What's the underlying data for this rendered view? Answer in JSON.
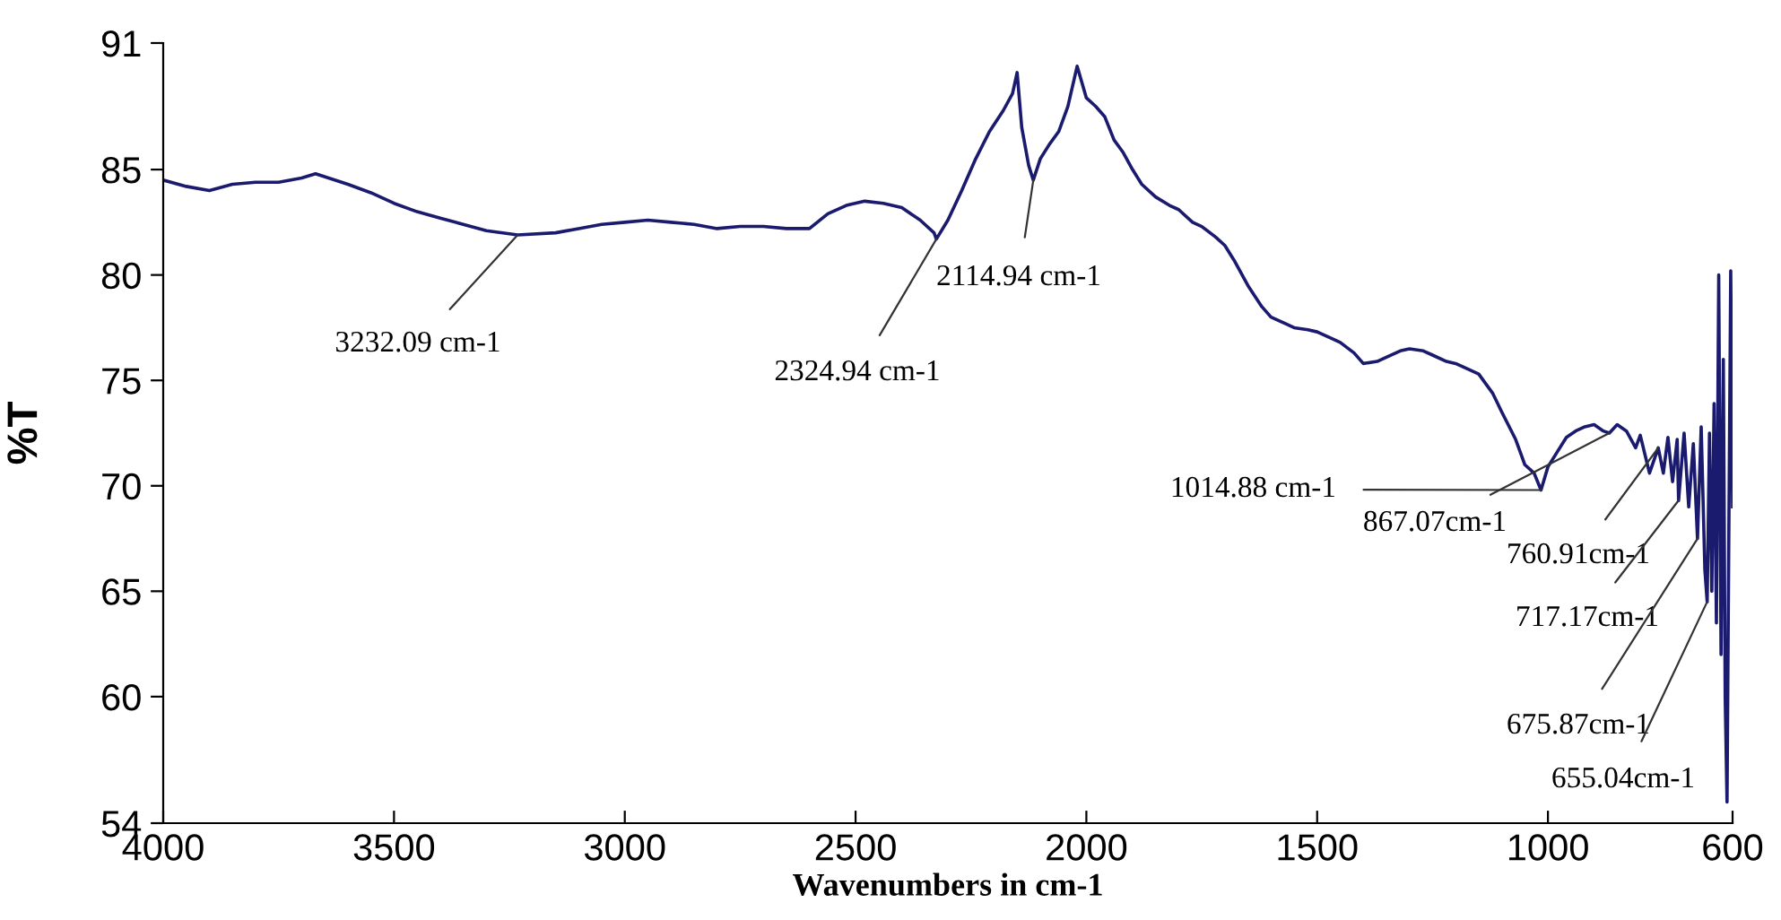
{
  "chart_data": {
    "type": "line",
    "xlabel": "Wavenumbers in cm-1",
    "ylabel": "%T",
    "xlim": [
      4000,
      600
    ],
    "ylim": [
      54,
      91
    ],
    "xticks": [
      4000,
      3500,
      3000,
      2500,
      2000,
      1500,
      1000,
      600
    ],
    "yticks": [
      54,
      60,
      65,
      70,
      75,
      80,
      85,
      91
    ],
    "grid": false,
    "marker": "none",
    "line_style": "solid",
    "series": [
      {
        "color": "#1a1a6e",
        "x": [
          4000,
          3950,
          3900,
          3850,
          3800,
          3750,
          3700,
          3670,
          3600,
          3550,
          3500,
          3450,
          3400,
          3350,
          3300,
          3232,
          3150,
          3100,
          3050,
          3000,
          2950,
          2900,
          2850,
          2800,
          2750,
          2700,
          2650,
          2600,
          2560,
          2520,
          2480,
          2440,
          2400,
          2360,
          2330,
          2325,
          2300,
          2270,
          2240,
          2210,
          2180,
          2160,
          2150,
          2140,
          2125,
          2115,
          2100,
          2080,
          2060,
          2040,
          2020,
          2000,
          1980,
          1960,
          1940,
          1920,
          1900,
          1880,
          1850,
          1820,
          1800,
          1770,
          1750,
          1720,
          1700,
          1680,
          1650,
          1620,
          1600,
          1570,
          1550,
          1520,
          1500,
          1470,
          1450,
          1420,
          1400,
          1370,
          1350,
          1320,
          1300,
          1270,
          1250,
          1220,
          1200,
          1170,
          1150,
          1120,
          1100,
          1070,
          1050,
          1030,
          1015,
          1000,
          980,
          960,
          940,
          920,
          900,
          880,
          867,
          850,
          830,
          810,
          800,
          780,
          761,
          750,
          740,
          730,
          720,
          717,
          705,
          695,
          685,
          676,
          668,
          660,
          655,
          650,
          645,
          640,
          635,
          630,
          625,
          620,
          616,
          612,
          608,
          604,
          600
        ],
        "values": [
          84.5,
          84.2,
          84.0,
          84.3,
          84.4,
          84.4,
          84.6,
          84.8,
          84.3,
          83.9,
          83.4,
          83.0,
          82.7,
          82.4,
          82.1,
          81.9,
          82.0,
          82.2,
          82.4,
          82.5,
          82.6,
          82.5,
          82.4,
          82.2,
          82.3,
          82.3,
          82.2,
          82.2,
          82.9,
          83.3,
          83.5,
          83.4,
          83.2,
          82.6,
          82.0,
          81.7,
          82.6,
          84.0,
          85.5,
          86.8,
          87.8,
          88.6,
          89.6,
          87.0,
          85.2,
          84.5,
          85.5,
          86.2,
          86.8,
          88.0,
          89.9,
          88.4,
          88.0,
          87.5,
          86.4,
          85.8,
          85.0,
          84.3,
          83.7,
          83.3,
          83.1,
          82.5,
          82.3,
          81.8,
          81.4,
          80.7,
          79.5,
          78.5,
          78.0,
          77.7,
          77.5,
          77.4,
          77.3,
          77.0,
          76.8,
          76.3,
          75.8,
          75.9,
          76.1,
          76.4,
          76.5,
          76.4,
          76.2,
          75.9,
          75.8,
          75.5,
          75.3,
          74.4,
          73.5,
          72.2,
          71.0,
          70.6,
          69.8,
          70.9,
          71.6,
          72.3,
          72.6,
          72.8,
          72.9,
          72.6,
          72.5,
          72.9,
          72.6,
          71.8,
          72.4,
          70.6,
          71.8,
          70.6,
          72.3,
          70.2,
          72.2,
          69.3,
          72.5,
          69.0,
          72.0,
          67.5,
          72.8,
          66.0,
          64.5,
          72.5,
          65.0,
          73.9,
          63.5,
          80.0,
          62.0,
          76.0,
          60.0,
          55.0,
          68.0,
          80.2,
          69.0
        ]
      }
    ],
    "annotations": [
      {
        "text": "3232.09 cm-1",
        "x": 3232.09,
        "y": 81.9
      },
      {
        "text": "2324.94 cm-1",
        "x": 2324.94,
        "y": 81.7
      },
      {
        "text": "2114.94 cm-1",
        "x": 2114.94,
        "y": 84.5
      },
      {
        "text": "1014.88 cm-1",
        "x": 1014.88,
        "y": 69.8
      },
      {
        "text": "867.07cm-1",
        "x": 867.07,
        "y": 72.5
      },
      {
        "text": "760.91cm-1",
        "x": 760.91,
        "y": 71.8
      },
      {
        "text": "717.17cm-1",
        "x": 717.17,
        "y": 69.3
      },
      {
        "text": "675.87cm-1",
        "x": 675.87,
        "y": 67.5
      },
      {
        "text": "655.04cm-1",
        "x": 655.04,
        "y": 64.5
      }
    ]
  }
}
